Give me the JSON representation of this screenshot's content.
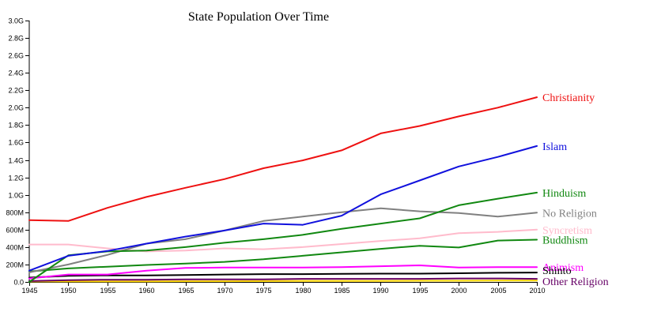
{
  "chart_data": {
    "type": "line",
    "title": "State Population Over Time",
    "xlabel": "",
    "ylabel": "",
    "x": [
      1945,
      1950,
      1955,
      1960,
      1965,
      1970,
      1975,
      1980,
      1985,
      1990,
      1995,
      2000,
      2005,
      2010
    ],
    "xlim": [
      1945,
      2010
    ],
    "ylim": [
      0,
      3000000000
    ],
    "x_ticks": [
      "1945",
      "1950",
      "1955",
      "1960",
      "1965",
      "1970",
      "1975",
      "1980",
      "1985",
      "1990",
      "1995",
      "2000",
      "2005",
      "2010"
    ],
    "y_ticks": [
      {
        "value": 0,
        "label": "0.0"
      },
      {
        "value": 200000000,
        "label": "200M"
      },
      {
        "value": 400000000,
        "label": "400M"
      },
      {
        "value": 600000000,
        "label": "600M"
      },
      {
        "value": 800000000,
        "label": "800M"
      },
      {
        "value": 1000000000,
        "label": "1.0G"
      },
      {
        "value": 1200000000,
        "label": "1.2G"
      },
      {
        "value": 1400000000,
        "label": "1.4G"
      },
      {
        "value": 1600000000,
        "label": "1.6G"
      },
      {
        "value": 1800000000,
        "label": "1.8G"
      },
      {
        "value": 2000000000,
        "label": "2.0G"
      },
      {
        "value": 2200000000,
        "label": "2.2G"
      },
      {
        "value": 2400000000,
        "label": "2.4G"
      },
      {
        "value": 2600000000,
        "label": "2.6G"
      },
      {
        "value": 2800000000,
        "label": "2.8G"
      },
      {
        "value": 3000000000,
        "label": "3.0G"
      }
    ],
    "grid": false,
    "legend": "end-of-line labels",
    "series": [
      {
        "name": "Christianity",
        "color": "#ee1111",
        "values": [
          710000000,
          700000000,
          850000000,
          975000000,
          1080000000,
          1180000000,
          1305000000,
          1395000000,
          1510000000,
          1705000000,
          1790000000,
          1900000000,
          2000000000,
          2120000000
        ]
      },
      {
        "name": "Islam",
        "color": "#1111dd",
        "values": [
          130000000,
          300000000,
          355000000,
          440000000,
          520000000,
          590000000,
          670000000,
          655000000,
          760000000,
          1005000000,
          1165000000,
          1325000000,
          1435000000,
          1560000000
        ]
      },
      {
        "name": "Hinduism",
        "color": "#118811",
        "values": [
          0,
          305000000,
          350000000,
          360000000,
          400000000,
          450000000,
          490000000,
          540000000,
          610000000,
          670000000,
          730000000,
          880000000,
          955000000,
          1025000000
        ]
      },
      {
        "name": "No Religion",
        "color": "#808080",
        "values": [
          110000000,
          200000000,
          310000000,
          440000000,
          490000000,
          590000000,
          700000000,
          750000000,
          800000000,
          845000000,
          810000000,
          790000000,
          750000000,
          795000000
        ]
      },
      {
        "name": "Syncretism",
        "color": "#ffbbcc",
        "values": [
          430000000,
          430000000,
          385000000,
          350000000,
          360000000,
          385000000,
          375000000,
          400000000,
          435000000,
          470000000,
          500000000,
          560000000,
          575000000,
          600000000
        ]
      },
      {
        "name": "Buddhism",
        "color": "#118811",
        "values": [
          120000000,
          155000000,
          175000000,
          195000000,
          210000000,
          230000000,
          260000000,
          300000000,
          340000000,
          380000000,
          415000000,
          395000000,
          475000000,
          485000000
        ]
      },
      {
        "name": "Animism",
        "color": "#ff00ff",
        "values": [
          40000000,
          85000000,
          85000000,
          130000000,
          160000000,
          165000000,
          165000000,
          165000000,
          170000000,
          180000000,
          190000000,
          165000000,
          170000000,
          170000000
        ]
      },
      {
        "name": "Shinto",
        "color": "#000000",
        "values": [
          50000000,
          70000000,
          75000000,
          75000000,
          80000000,
          85000000,
          90000000,
          90000000,
          92000000,
          95000000,
          95000000,
          100000000,
          105000000,
          108000000
        ]
      },
      {
        "name": "Other Religion",
        "color": "#660066",
        "values": [
          10000000,
          20000000,
          25000000,
          25000000,
          30000000,
          30000000,
          30000000,
          35000000,
          35000000,
          35000000,
          35000000,
          40000000,
          40000000,
          35000000
        ]
      },
      {
        "name": "",
        "color": "#ffd700",
        "values": [
          5000000,
          5000000,
          5000000,
          5000000,
          8000000,
          8000000,
          10000000,
          12000000,
          12000000,
          12000000,
          14000000,
          14000000,
          15000000,
          15000000
        ]
      }
    ]
  }
}
